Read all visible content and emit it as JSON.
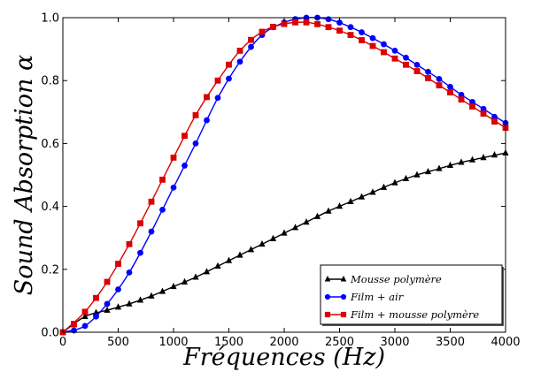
{
  "chart_data": {
    "type": "line",
    "title": "",
    "xlabel": "Fréquences (Hz)",
    "ylabel": "Sound Absorption α",
    "xlim": [
      0,
      4000
    ],
    "ylim": [
      0.0,
      1.0
    ],
    "xticks": [
      0,
      500,
      1000,
      1500,
      2000,
      2500,
      3000,
      3500,
      4000
    ],
    "yticks": [
      "0.0",
      "0.2",
      "0.4",
      "0.6",
      "0.8",
      "1.0"
    ],
    "grid": false,
    "legend_position": "bottom-right",
    "series": [
      {
        "name": "Mousse polymère",
        "color": "#000000",
        "marker": "triangle",
        "x": [
          0,
          200,
          400,
          600,
          800,
          1000,
          1200,
          1400,
          1600,
          1800,
          2000,
          2200,
          2400,
          2600,
          2800,
          3000,
          3200,
          3400,
          3600,
          3800,
          4000
        ],
        "y": [
          0.0,
          0.05,
          0.07,
          0.09,
          0.115,
          0.145,
          0.175,
          0.21,
          0.245,
          0.28,
          0.315,
          0.35,
          0.385,
          0.415,
          0.445,
          0.475,
          0.5,
          0.52,
          0.54,
          0.555,
          0.57
        ]
      },
      {
        "name": "Film + air",
        "color": "#0000ff",
        "marker": "circle",
        "x": [
          0,
          200,
          400,
          600,
          800,
          1000,
          1200,
          1400,
          1600,
          1800,
          2000,
          2200,
          2400,
          2600,
          2800,
          3000,
          3200,
          3400,
          3600,
          3800,
          4000
        ],
        "y": [
          0.0,
          0.02,
          0.09,
          0.19,
          0.32,
          0.46,
          0.6,
          0.745,
          0.86,
          0.945,
          0.985,
          1.0,
          0.995,
          0.97,
          0.935,
          0.895,
          0.85,
          0.805,
          0.755,
          0.71,
          0.665
        ]
      },
      {
        "name": "Film + mousse polymère",
        "color": "#dd0000",
        "marker": "square",
        "x": [
          0,
          200,
          400,
          600,
          800,
          1000,
          1200,
          1400,
          1600,
          1800,
          2000,
          2200,
          2400,
          2600,
          2800,
          3000,
          3200,
          3400,
          3600,
          3800,
          4000
        ],
        "y": [
          0.0,
          0.065,
          0.16,
          0.28,
          0.415,
          0.555,
          0.69,
          0.8,
          0.895,
          0.955,
          0.98,
          0.985,
          0.97,
          0.945,
          0.91,
          0.87,
          0.83,
          0.785,
          0.74,
          0.695,
          0.65
        ]
      }
    ]
  }
}
